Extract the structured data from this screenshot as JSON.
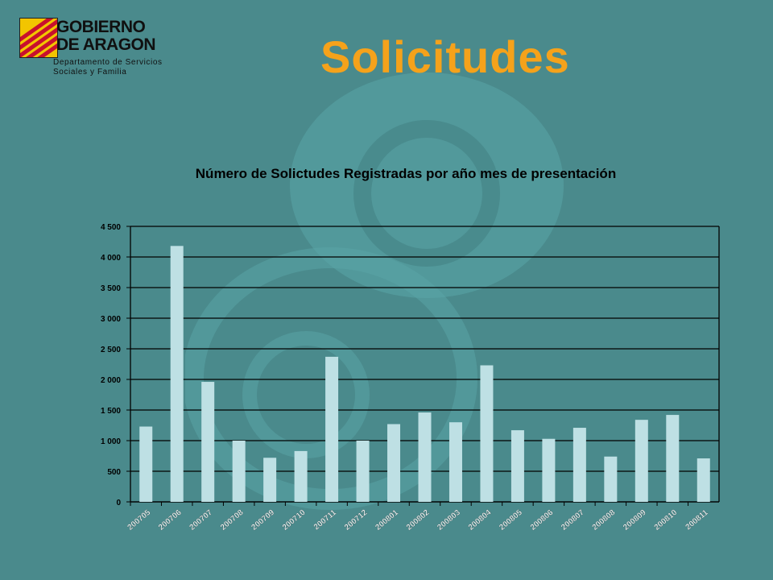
{
  "header": {
    "org_line1": "GOBIERNO",
    "org_line2": "DE ARAGON",
    "dept_line1": "Departamento de Servicios",
    "dept_line2": "Sociales y Familia",
    "title": "Solicitudes"
  },
  "colors": {
    "background": "#4A8A8C",
    "title": "#F5A21B",
    "bar": "#BEE0E4",
    "gridline": "#000000"
  },
  "chart_data": {
    "type": "bar",
    "title": "Número de Solictudes Registradas  por año mes de presentación",
    "xlabel": "",
    "ylabel": "",
    "ylim": [
      0,
      4500
    ],
    "yticks": [
      0,
      500,
      1000,
      1500,
      2000,
      2500,
      3000,
      3500,
      4000,
      4500
    ],
    "ytick_labels": [
      "0",
      "500",
      "1 000",
      "1 500",
      "2 000",
      "2 500",
      "3 000",
      "3 500",
      "4 000",
      "4 500"
    ],
    "grid": true,
    "categories": [
      "200705",
      "200706",
      "200707",
      "200708",
      "200709",
      "200710",
      "200711",
      "200712",
      "200801",
      "200802",
      "200803",
      "200804",
      "200805",
      "200806",
      "200807",
      "200808",
      "200809",
      "200810",
      "200811"
    ],
    "values": [
      1230,
      4180,
      1960,
      1000,
      720,
      830,
      2370,
      1000,
      1270,
      1460,
      1300,
      2230,
      1170,
      1030,
      1210,
      740,
      1340,
      1420,
      710
    ]
  }
}
